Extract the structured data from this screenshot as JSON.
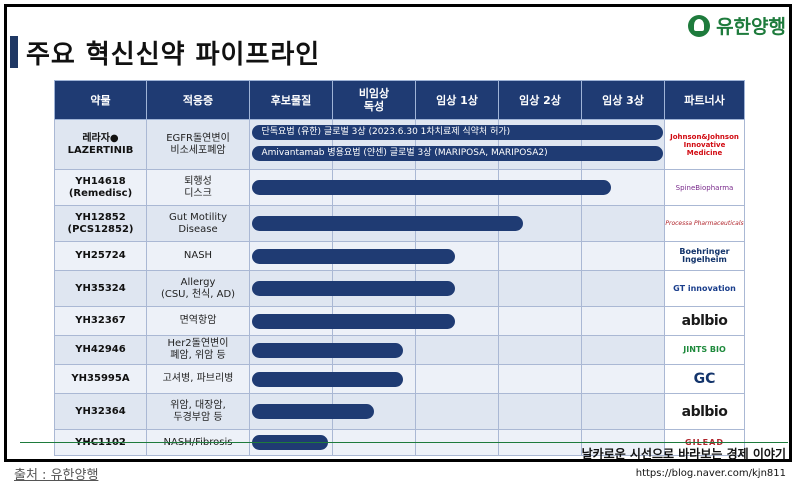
{
  "title": "주요 혁신신약 파이프라인",
  "logo": {
    "name": "유한양행",
    "color": "#1e7b3c"
  },
  "headers": [
    "약물",
    "적응증",
    "후보물질",
    "비임상\n독성",
    "임상 1상",
    "임상 2상",
    "임상 3상",
    "파트너사"
  ],
  "rows": [
    {
      "drug": "레라자●\nLAZERTINIB",
      "indication": "EGFR돌연변이\n비소세포폐암",
      "partner": "Johnson&Johnson\nInnovative Medicine"
    },
    {
      "drug": "YH14618\n(Remedisc)",
      "indication": "퇴행성\n디스크",
      "partner": "SpineBiopharma"
    },
    {
      "drug": "YH12852\n(PCS12852)",
      "indication": "Gut Motility\nDisease",
      "partner": "Processa Pharmaceuticals"
    },
    {
      "drug": "YH25724",
      "indication": "NASH",
      "partner": "Boehringer\nIngelheim"
    },
    {
      "drug": "YH35324",
      "indication": "Allergy\n(CSU, 천식, AD)",
      "partner": "GT innovation"
    },
    {
      "drug": "YH32367",
      "indication": "면역항암",
      "partner": "ablbio"
    },
    {
      "drug": "YH42946",
      "indication": "Her2돌연변이\n폐암, 위암 등",
      "partner": "JINTS BIO"
    },
    {
      "drug": "YH35995A",
      "indication": "고셔병, 파브리병",
      "partner": "GC"
    },
    {
      "drug": "YH32364",
      "indication": "위암, 대장암,\n두경부암 등",
      "partner": "ablbio"
    },
    {
      "drug": "YHC1102",
      "indication": "NASH/Fibrosis",
      "partner": "GILEAD"
    }
  ],
  "progress": [
    {
      "row": 0,
      "stage_fraction": 1.0,
      "label": "단독요법 (유한) 글로벌 3상 (2023.6.30 1차치료제 식약처 허가)"
    },
    {
      "row": 0,
      "stage_fraction": 1.0,
      "label": "Amivantamab 병용요법 (얀센) 글로벌 3상 (MARIPOSA, MARIPOSA2)"
    },
    {
      "row": 1,
      "stage_fraction": 0.875,
      "label": ""
    },
    {
      "row": 2,
      "stage_fraction": 0.665,
      "label": ""
    },
    {
      "row": 3,
      "stage_fraction": 0.5,
      "label": ""
    },
    {
      "row": 4,
      "stage_fraction": 0.5,
      "label": ""
    },
    {
      "row": 5,
      "stage_fraction": 0.5,
      "label": ""
    },
    {
      "row": 6,
      "stage_fraction": 0.375,
      "label": ""
    },
    {
      "row": 7,
      "stage_fraction": 0.375,
      "label": ""
    },
    {
      "row": 8,
      "stage_fraction": 0.305,
      "label": ""
    },
    {
      "row": 9,
      "stage_fraction": 0.195,
      "label": ""
    }
  ],
  "footer": {
    "source": "출처 : 유한양행",
    "blog_title": "날카로운 시선으로 바라보는 경제 이야기",
    "blog_url": "https://blog.naver.com/kjn811"
  },
  "colors": {
    "header": "#1f3b73",
    "bar": "#1f3b73",
    "accent": "#1e7b3c"
  }
}
